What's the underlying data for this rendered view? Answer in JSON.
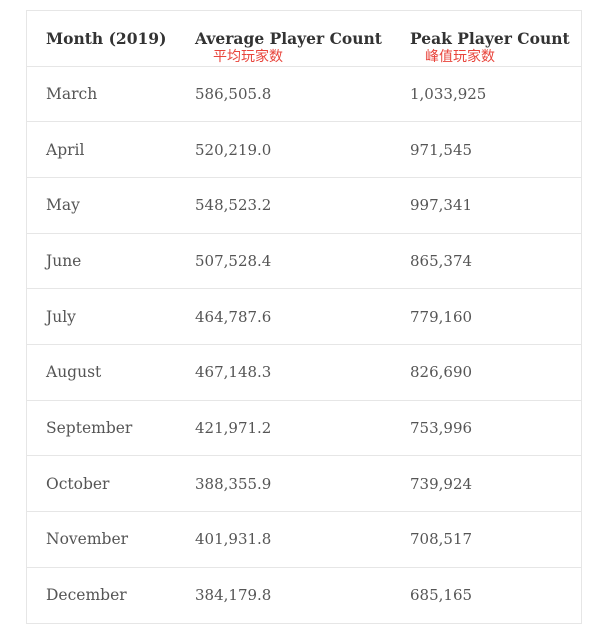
{
  "table": {
    "headers": {
      "month": "Month (2019)",
      "average": "Average Player Count",
      "peak": "Peak Player Count"
    },
    "annotations": {
      "average": "平均玩家数",
      "peak": "峰值玩家数"
    },
    "rows": [
      {
        "month": "March",
        "average": "586,505.8",
        "peak": "1,033,925"
      },
      {
        "month": "April",
        "average": "520,219.0",
        "peak": "971,545"
      },
      {
        "month": "May",
        "average": "548,523.2",
        "peak": "997,341"
      },
      {
        "month": "June",
        "average": "507,528.4",
        "peak": "865,374"
      },
      {
        "month": "July",
        "average": "464,787.6",
        "peak": "779,160"
      },
      {
        "month": "August",
        "average": "467,148.3",
        "peak": "826,690"
      },
      {
        "month": "September",
        "average": "421,971.2",
        "peak": "753,996"
      },
      {
        "month": "October",
        "average": "388,355.9",
        "peak": "739,924"
      },
      {
        "month": "November",
        "average": "401,931.8",
        "peak": "708,517"
      },
      {
        "month": "December",
        "average": "384,179.8",
        "peak": "685,165"
      }
    ]
  }
}
